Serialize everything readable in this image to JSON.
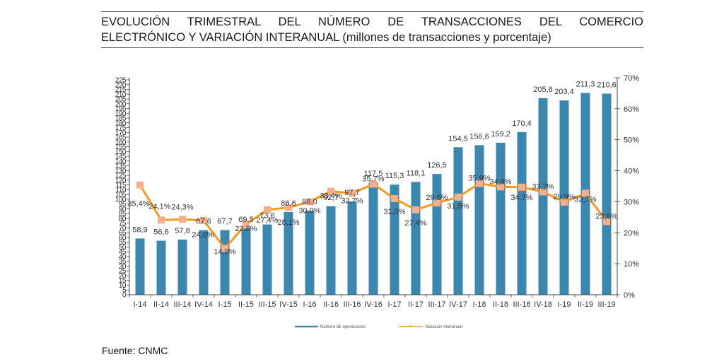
{
  "header": {
    "title_line1": "EVOLUCIÓN TRIMESTRAL DEL NÚMERO DE TRANSACCIONES DEL COMERCIO",
    "title_line2": "ELECTRÓNICO Y VARIACIÓN INTERANUAL (millones de transacciones y porcentaje)"
  },
  "footer": {
    "source": "Fuente: CNMC"
  },
  "colors": {
    "bars": "#3a87b0",
    "line": "#f59a1d",
    "markers": "#f9b08a",
    "axis": "#444444"
  },
  "chart_data": {
    "type": "bar+line",
    "title": "EVOLUCIÓN TRIMESTRAL DEL NÚMERO DE TRANSACCIONES DEL COMERCIO ELECTRÓNICO Y VARIACIÓN INTERANUAL (millones de transacciones y porcentaje)",
    "categories": [
      "I-14",
      "II-14",
      "III-14",
      "IV-14",
      "I-15",
      "II-15",
      "III-15",
      "IV-15",
      "I-16",
      "II-16",
      "III-16",
      "IV-16",
      "I-17",
      "II-17",
      "III-17",
      "IV-17",
      "I-18",
      "II-18",
      "III-18",
      "IV-18",
      "I-19",
      "II-19",
      "III-19"
    ],
    "series": [
      {
        "name": "Número de operaciones",
        "type": "bar",
        "axis": "left",
        "values": [
          58.9,
          56.6,
          57.8,
          67.6,
          67.7,
          69.5,
          73.6,
          86.6,
          88.0,
          92.7,
          97.7,
          117.5,
          115.3,
          118.1,
          126.5,
          154.5,
          156.6,
          159.2,
          170.4,
          205.8,
          203.4,
          211.3,
          210.6
        ],
        "labels": [
          "58,9",
          "56,6",
          "57,8",
          "67,6",
          "67,7",
          "69,5",
          "73,6",
          "86,6",
          "88,0",
          "92,7",
          "97,7",
          "117,5",
          "115,3",
          "118,1",
          "126,5",
          "154,5",
          "156,6",
          "159,2",
          "170,4",
          "205,8",
          "203,4",
          "211,3",
          "210,6"
        ]
      },
      {
        "name": "Variación Interanual",
        "type": "line",
        "axis": "right",
        "values": [
          35.4,
          24.1,
          24.3,
          24.0,
          14.9,
          22.8,
          27.4,
          28.1,
          30.0,
          33.4,
          32.7,
          35.7,
          31.0,
          27.4,
          29.6,
          31.5,
          35.9,
          34.8,
          34.7,
          33.2,
          29.9,
          32.7,
          23.6
        ],
        "labels": [
          "35,4%",
          "24,1%",
          "24,3%",
          "24,0%",
          "14,9%",
          "22,8%",
          "27,4%",
          "28,1%",
          "30,0%",
          "33,4%",
          "32,7%",
          "35,7%",
          "31,0%",
          "27,4%",
          "29,6%",
          "31,5%",
          "35,9%",
          "34,8%",
          "34,7%",
          "33,2%",
          "29,9%",
          "32,7%",
          "23,6%"
        ]
      }
    ],
    "left_axis": {
      "min": 0,
      "max": 225,
      "step": 5
    },
    "right_axis": {
      "min": 0,
      "max": 70,
      "step": 10,
      "ticks": [
        "0%",
        "10%",
        "20%",
        "30%",
        "40%",
        "50%",
        "60%",
        "70%"
      ]
    },
    "xlabel": "",
    "ylabel": "",
    "grid": false,
    "legend": {
      "position": "bottom",
      "entries": [
        "Número de operaciones",
        "Variación Interanual"
      ]
    }
  }
}
